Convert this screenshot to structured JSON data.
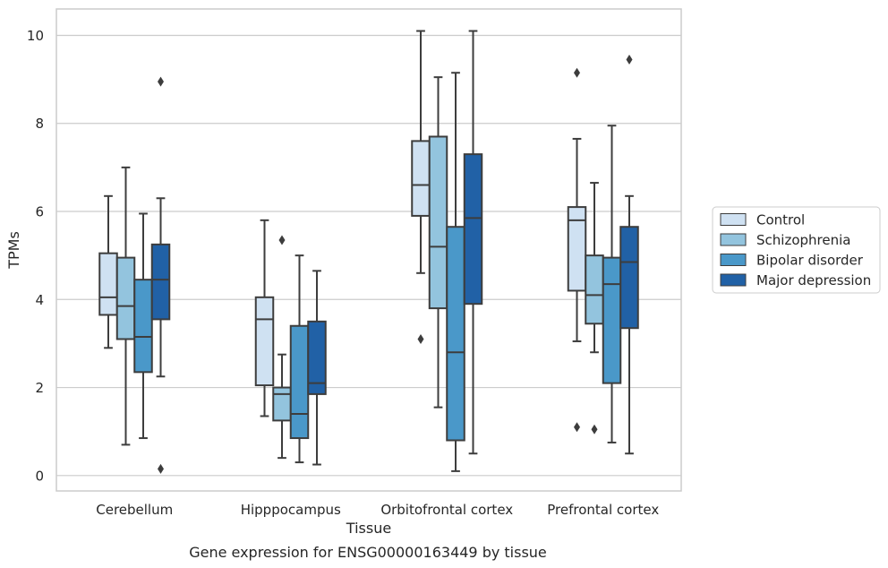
{
  "chart_data": {
    "type": "box",
    "title": "",
    "caption": "Gene expression for ENSG00000163449 by tissue",
    "xlabel": "Tissue",
    "ylabel": "TPMs",
    "ylim": [
      -0.35,
      10.6
    ],
    "yticks": [
      0,
      2,
      4,
      6,
      8,
      10
    ],
    "grid": "horizontal",
    "legend_position": "right",
    "categories": [
      "Cerebellum",
      "Hipppocampus",
      "Orbitofrontal cortex",
      "Prefrontal cortex"
    ],
    "series": [
      {
        "name": "Control",
        "color": "#cfe1f2",
        "boxes": [
          {
            "whisker_low": 2.9,
            "q1": 3.65,
            "median": 4.05,
            "q3": 5.05,
            "whisker_high": 6.35,
            "outliers": []
          },
          {
            "whisker_low": 1.35,
            "q1": 2.05,
            "median": 3.55,
            "q3": 4.05,
            "whisker_high": 5.8,
            "outliers": []
          },
          {
            "whisker_low": 4.6,
            "q1": 5.9,
            "median": 6.6,
            "q3": 7.6,
            "whisker_high": 10.1,
            "outliers": [
              3.1
            ]
          },
          {
            "whisker_low": 3.05,
            "q1": 4.2,
            "median": 5.8,
            "q3": 6.1,
            "whisker_high": 7.65,
            "outliers": [
              9.15,
              1.1
            ]
          }
        ]
      },
      {
        "name": "Schizophrenia",
        "color": "#93c4de",
        "boxes": [
          {
            "whisker_low": 0.7,
            "q1": 3.1,
            "median": 3.85,
            "q3": 4.95,
            "whisker_high": 7.0,
            "outliers": []
          },
          {
            "whisker_low": 0.4,
            "q1": 1.25,
            "median": 1.85,
            "q3": 2.0,
            "whisker_high": 2.75,
            "outliers": [
              5.35
            ]
          },
          {
            "whisker_low": 1.55,
            "q1": 3.8,
            "median": 5.2,
            "q3": 7.7,
            "whisker_high": 9.05,
            "outliers": []
          },
          {
            "whisker_low": 2.8,
            "q1": 3.45,
            "median": 4.1,
            "q3": 5.0,
            "whisker_high": 6.65,
            "outliers": [
              1.05
            ]
          }
        ]
      },
      {
        "name": "Bipolar disorder",
        "color": "#4a98c9",
        "boxes": [
          {
            "whisker_low": 0.85,
            "q1": 2.35,
            "median": 3.15,
            "q3": 4.45,
            "whisker_high": 5.95,
            "outliers": []
          },
          {
            "whisker_low": 0.3,
            "q1": 0.85,
            "median": 1.4,
            "q3": 3.4,
            "whisker_high": 5.0,
            "outliers": []
          },
          {
            "whisker_low": 0.1,
            "q1": 0.8,
            "median": 2.8,
            "q3": 5.65,
            "whisker_high": 9.15,
            "outliers": []
          },
          {
            "whisker_low": 0.75,
            "q1": 2.1,
            "median": 4.35,
            "q3": 4.95,
            "whisker_high": 7.95,
            "outliers": []
          }
        ]
      },
      {
        "name": "Major depression",
        "color": "#2161a6",
        "boxes": [
          {
            "whisker_low": 2.25,
            "q1": 3.55,
            "median": 4.45,
            "q3": 5.25,
            "whisker_high": 6.3,
            "outliers": [
              8.95,
              0.15
            ]
          },
          {
            "whisker_low": 0.25,
            "q1": 1.85,
            "median": 2.1,
            "q3": 3.5,
            "whisker_high": 4.65,
            "outliers": []
          },
          {
            "whisker_low": 0.5,
            "q1": 3.9,
            "median": 5.85,
            "q3": 7.3,
            "whisker_high": 10.1,
            "outliers": []
          },
          {
            "whisker_low": 0.5,
            "q1": 3.35,
            "median": 4.85,
            "q3": 5.65,
            "whisker_high": 6.35,
            "outliers": [
              9.45
            ]
          }
        ]
      }
    ]
  }
}
